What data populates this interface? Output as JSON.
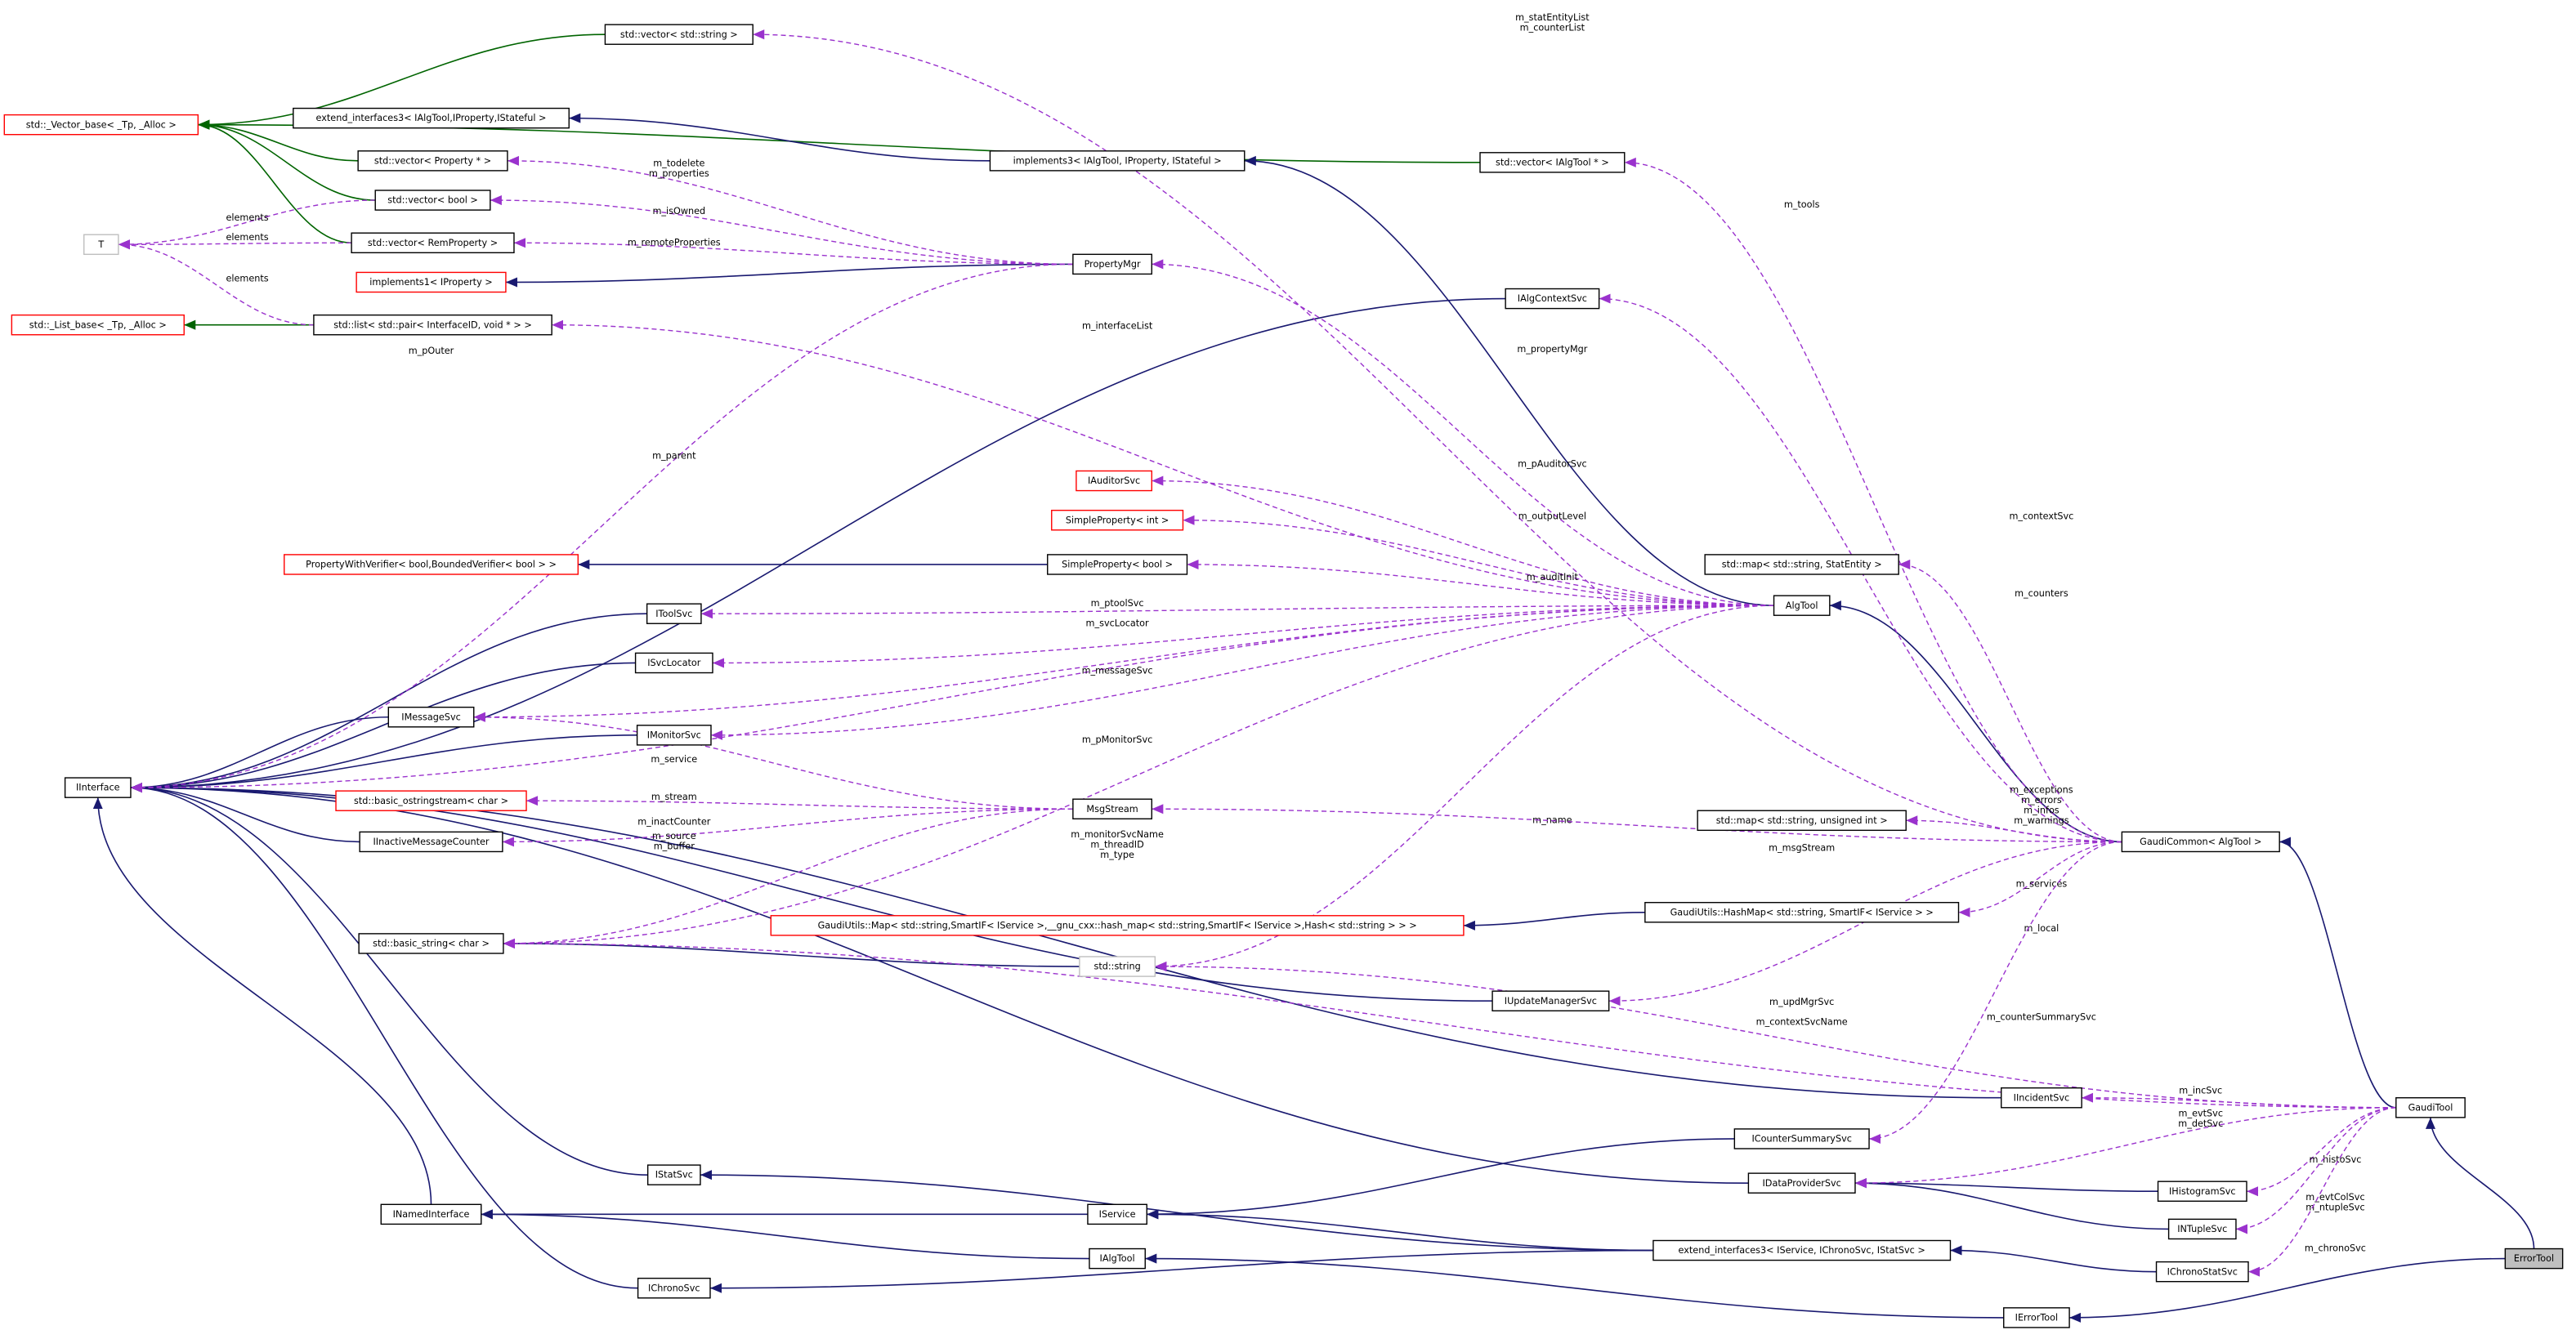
{
  "nodes": [
    "std::vector< std::string >",
    "std::_Vector_base< _Tp, _Alloc >",
    "extend_interfaces3< IAlgTool,IProperty,IStateful >",
    "implements3< IAlgTool, IProperty, IStateful >",
    "std::vector< IAlgTool * >",
    "std::vector< Property * >",
    "std::vector< bool >",
    "T",
    "std::vector< RemProperty >",
    "PropertyMgr",
    "implements1< IProperty >",
    "std::_List_base< _Tp, _Alloc >",
    "std::list< std::pair< InterfaceID, void * > >",
    "IAlgContextSvc",
    "IAuditorSvc",
    "SimpleProperty< int >",
    "PropertyWithVerifier< bool,BoundedVerifier< bool > >",
    "SimpleProperty< bool >",
    "std::map< std::string, StatEntity >",
    "AlgTool",
    "IToolSvc",
    "ISvcLocator",
    "IMessageSvc",
    "IMonitorSvc",
    "IInterface",
    "std::basic_ostringstream< char >",
    "MsgStream",
    "IInactiveMessageCounter",
    "std::map< std::string, unsigned int >",
    "GaudiCommon< AlgTool >",
    "GaudiUtils::Map< std::string,SmartIF< IService >,__gnu_cxx::hash_map< std::string,SmartIF< IService >,Hash< std::string > > >",
    "GaudiUtils::HashMap< std::string, SmartIF< IService > >",
    "std::basic_string< char >",
    "std::string",
    "IUpdateManagerSvc",
    "IIncidentSvc",
    "GaudiTool",
    "ICounterSummarySvc",
    "IStatSvc",
    "IDataProviderSvc",
    "IHistogramSvc",
    "INamedInterface",
    "IService",
    "INTupleSvc",
    "IAlgTool",
    "extend_interfaces3< IService, IChronoSvc, IStatSvc >",
    "IChronoStatSvc",
    "IChronoSvc",
    "ErrorTool",
    "IErrorTool"
  ],
  "edge_labels": [
    [
      "m_statEntityList",
      "m_counterList"
    ],
    [
      "m_todelete",
      "m_properties"
    ],
    [
      "m_isOwned"
    ],
    [
      "m_remoteProperties"
    ],
    [
      "elements"
    ],
    [
      "elements"
    ],
    [
      "elements"
    ],
    [
      "m_pOuter"
    ],
    [
      "m_tools"
    ],
    [
      "m_interfaceList"
    ],
    [
      "m_propertyMgr"
    ],
    [
      "m_contextSvc"
    ],
    [
      "m_parent"
    ],
    [
      "m_pAuditorSvc"
    ],
    [
      "m_outputLevel"
    ],
    [
      "m_auditInit"
    ],
    [
      "m_counters"
    ],
    [
      "m_ptoolSvc"
    ],
    [
      "m_svcLocator"
    ],
    [
      "m_messageSvc"
    ],
    [
      "m_pMonitorSvc"
    ],
    [
      "m_service"
    ],
    [
      "m_stream"
    ],
    [
      "m_inactCounter"
    ],
    [
      "m_source",
      "m_buffer"
    ],
    [
      "m_monitorSvcName",
      "m_threadID",
      "m_type"
    ],
    [
      "m_name"
    ],
    [
      "m_msgStream"
    ],
    [
      "m_exceptions",
      "m_errors",
      "m_infos",
      "m_warnings"
    ],
    [
      "m_services"
    ],
    [
      "m_local"
    ],
    [
      "m_updMgrSvc"
    ],
    [
      "m_contextSvcName"
    ],
    [
      "m_counterSummarySvc"
    ],
    [
      "m_incSvc"
    ],
    [
      "m_evtSvc",
      "m_detSvc"
    ],
    [
      "m_histoSvc"
    ],
    [
      "m_evtColSvc",
      "m_ntupleSvc"
    ],
    [
      "m_chronoSvc"
    ]
  ]
}
